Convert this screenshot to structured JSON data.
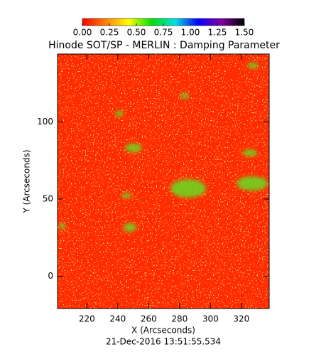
{
  "chart_data": {
    "type": "heatmap",
    "title": "Hinode SOT/SP - MERLIN : Damping Parameter",
    "x_label": "X (Arcseconds)",
    "y_label": "Y (Arcseconds)",
    "timestamp": "21-Dec-2016 13:51:55.534",
    "xlim": [
      201,
      338
    ],
    "xticks": [
      220,
      240,
      260,
      280,
      300,
      320
    ],
    "ylim": [
      -21,
      144
    ],
    "yticks": [
      0,
      50,
      100
    ],
    "clim": [
      0,
      1.5
    ],
    "colorbar_ticks": [
      {
        "value": 0,
        "label": "0.00"
      },
      {
        "value": 0.25,
        "label": "0.25"
      },
      {
        "value": 0.5,
        "label": "0.50"
      },
      {
        "value": 0.75,
        "label": "0.75"
      },
      {
        "value": 1,
        "label": "1.00"
      },
      {
        "value": 1.25,
        "label": "1.25"
      },
      {
        "value": 1.5,
        "label": "1.50"
      }
    ],
    "colorscale": [
      "#ff0000",
      "#ff8000",
      "#ffff00",
      "#00e000",
      "#00e0e0",
      "#0000ff",
      "#8000a0",
      "#000000"
    ]
  }
}
